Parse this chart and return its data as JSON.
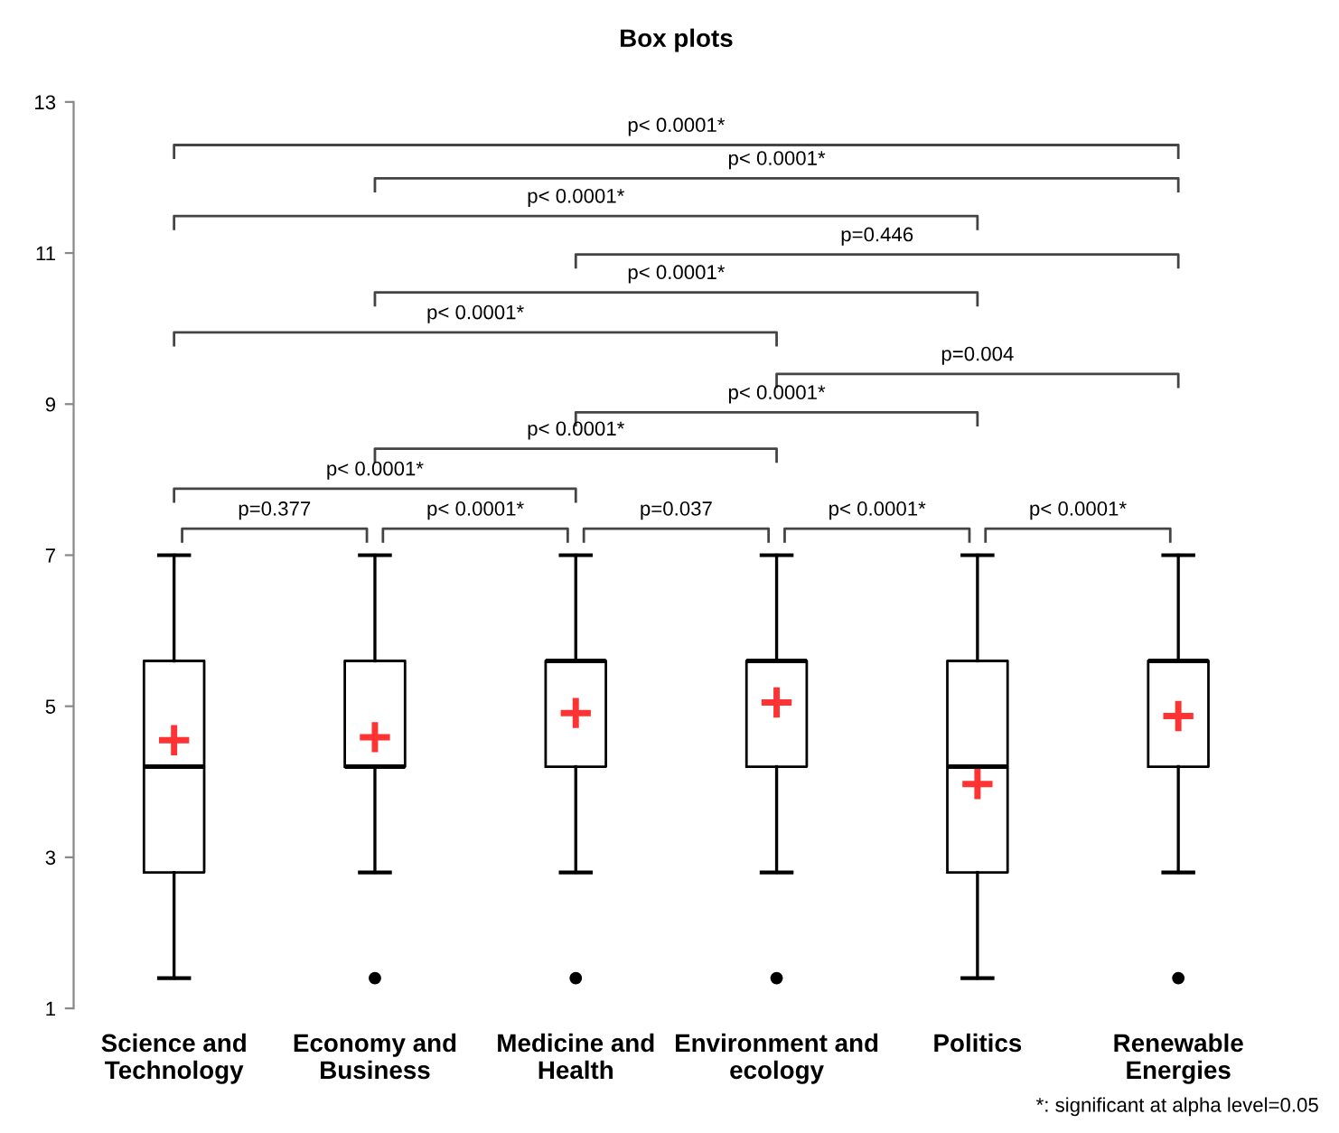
{
  "chart_data": {
    "type": "box",
    "title": "Box plots",
    "categories": [
      "Science and\nTechnology",
      "Economy and\nBusiness",
      "Medicine and\nHealth",
      "Environment and\necology",
      "Politics",
      "Renewable\nEnergies"
    ],
    "boxes": [
      {
        "low": 1.4,
        "q1": 2.8,
        "median": 4.2,
        "q3": 5.6,
        "high": 7,
        "mean": 4.55
      },
      {
        "low": 2.8,
        "q1": 4.2,
        "median": 4.2,
        "q3": 5.6,
        "high": 7,
        "mean": 4.59,
        "outliers": [
          1.4
        ]
      },
      {
        "low": 2.8,
        "q1": 4.2,
        "median": 5.6,
        "q3": 5.6,
        "high": 7,
        "mean": 4.91,
        "outliers": [
          1.4
        ]
      },
      {
        "low": 2.8,
        "q1": 4.2,
        "median": 5.6,
        "q3": 5.6,
        "high": 7,
        "mean": 5.05,
        "outliers": [
          1.4
        ]
      },
      {
        "low": 1.4,
        "q1": 2.8,
        "median": 4.2,
        "q3": 5.6,
        "high": 7,
        "mean": 3.97
      },
      {
        "low": 2.8,
        "q1": 4.2,
        "median": 5.6,
        "q3": 5.6,
        "high": 7,
        "mean": 4.87,
        "outliers": [
          1.4
        ]
      }
    ],
    "ylim": [
      1,
      13
    ],
    "yticks": [
      1,
      3,
      5,
      7,
      9,
      11,
      13
    ],
    "grid": false,
    "annotations": [
      "p< 0.0001*",
      "p< 0.0001*",
      "p< 0.0001*",
      "p=0.446",
      "p< 0.0001*",
      "p< 0.0001*",
      "p=0.004",
      "p< 0.0001*",
      "p< 0.0001*",
      "p< 0.0001*",
      "p=0.377",
      "p< 0.0001*",
      "p=0.037",
      "p< 0.0001*",
      "p< 0.0001*",
      "*: significant at alpha level=0.05"
    ]
  }
}
